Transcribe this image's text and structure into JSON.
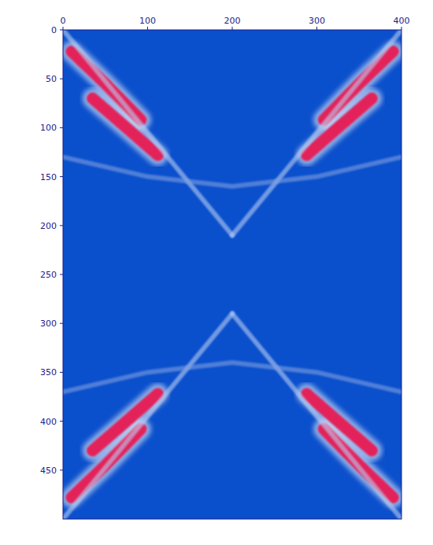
{
  "chart_data": {
    "type": "line",
    "xlim": [
      0,
      400
    ],
    "xticks": [
      0,
      100,
      200,
      300,
      400
    ],
    "ylim": [
      0,
      500
    ],
    "yticks": [
      0,
      50,
      100,
      150,
      200,
      250,
      300,
      350,
      400,
      450
    ],
    "grid": false,
    "color": "#0a4fcc",
    "series": [
      {
        "color": "#e3215a",
        "line_style": "thick",
        "x": [
          10,
          50,
          92
        ],
        "values": [
          22,
          55,
          92
        ]
      },
      {
        "color": "#e3215a",
        "line_style": "thick",
        "x": [
          35,
          75,
          112
        ],
        "values": [
          70,
          100,
          128
        ]
      },
      {
        "color": "#e3215a",
        "line_style": "thick",
        "x": [
          390,
          350,
          308
        ],
        "values": [
          22,
          55,
          92
        ]
      },
      {
        "color": "#e3215a",
        "line_style": "thick",
        "x": [
          365,
          325,
          288
        ],
        "values": [
          70,
          100,
          128
        ]
      },
      {
        "color": "#e3215a",
        "line_style": "thick",
        "x": [
          10,
          50,
          92
        ],
        "values": [
          478,
          445,
          408
        ]
      },
      {
        "color": "#e3215a",
        "line_style": "thick",
        "x": [
          35,
          75,
          112
        ],
        "values": [
          430,
          400,
          372
        ]
      },
      {
        "color": "#e3215a",
        "line_style": "thick",
        "x": [
          390,
          350,
          308
        ],
        "values": [
          478,
          445,
          408
        ]
      },
      {
        "color": "#e3215a",
        "line_style": "thick",
        "x": [
          365,
          325,
          288
        ],
        "values": [
          430,
          400,
          372
        ]
      },
      {
        "color": "#b9cdf2",
        "line_style": "faint",
        "x": [
          0,
          100,
          200
        ],
        "values": [
          0,
          105,
          210
        ]
      },
      {
        "color": "#b9cdf2",
        "line_style": "faint",
        "x": [
          400,
          300,
          200
        ],
        "values": [
          0,
          105,
          210
        ]
      },
      {
        "color": "#b9cdf2",
        "line_style": "faint",
        "x": [
          0,
          100,
          200
        ],
        "values": [
          500,
          395,
          290
        ]
      },
      {
        "color": "#b9cdf2",
        "line_style": "faint",
        "x": [
          400,
          300,
          200
        ],
        "values": [
          500,
          395,
          290
        ]
      },
      {
        "color": "#7e9fe0",
        "line_style": "faint",
        "x": [
          0,
          100,
          200,
          300,
          400
        ],
        "values": [
          130,
          150,
          160,
          150,
          130
        ]
      },
      {
        "color": "#7e9fe0",
        "line_style": "faint",
        "x": [
          0,
          100,
          200,
          300,
          400
        ],
        "values": [
          370,
          350,
          340,
          350,
          370
        ]
      }
    ]
  }
}
